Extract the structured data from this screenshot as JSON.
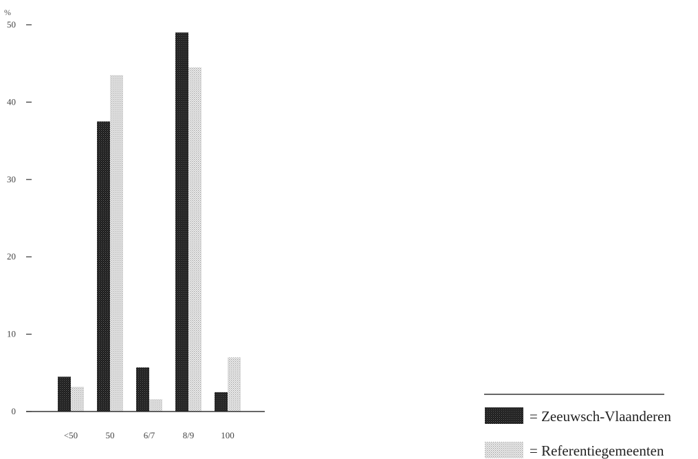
{
  "chart_data": {
    "type": "bar",
    "y_unit_label": "%",
    "categories": [
      "<50",
      "50",
      "6/7",
      "8/9",
      "100"
    ],
    "series": [
      {
        "name": "Zeeuwsch-Vlaanderen",
        "legend_label": "= Zeeuwsch-Vlaanderen",
        "values": [
          4.5,
          37.5,
          5.7,
          49,
          2.5
        ],
        "color": "#2b2b2b",
        "pattern": "dark-dots"
      },
      {
        "name": "Referentiegemeenten",
        "legend_label": "= Referentiegemeenten",
        "values": [
          3.2,
          43.5,
          1.6,
          44.5,
          7
        ],
        "color": "#cfcfcf",
        "pattern": "light-dots"
      }
    ],
    "ylim": [
      0,
      50
    ],
    "yticks": [
      0,
      10,
      20,
      30,
      40,
      50
    ],
    "grid": false,
    "legend_position": "bottom-right"
  }
}
